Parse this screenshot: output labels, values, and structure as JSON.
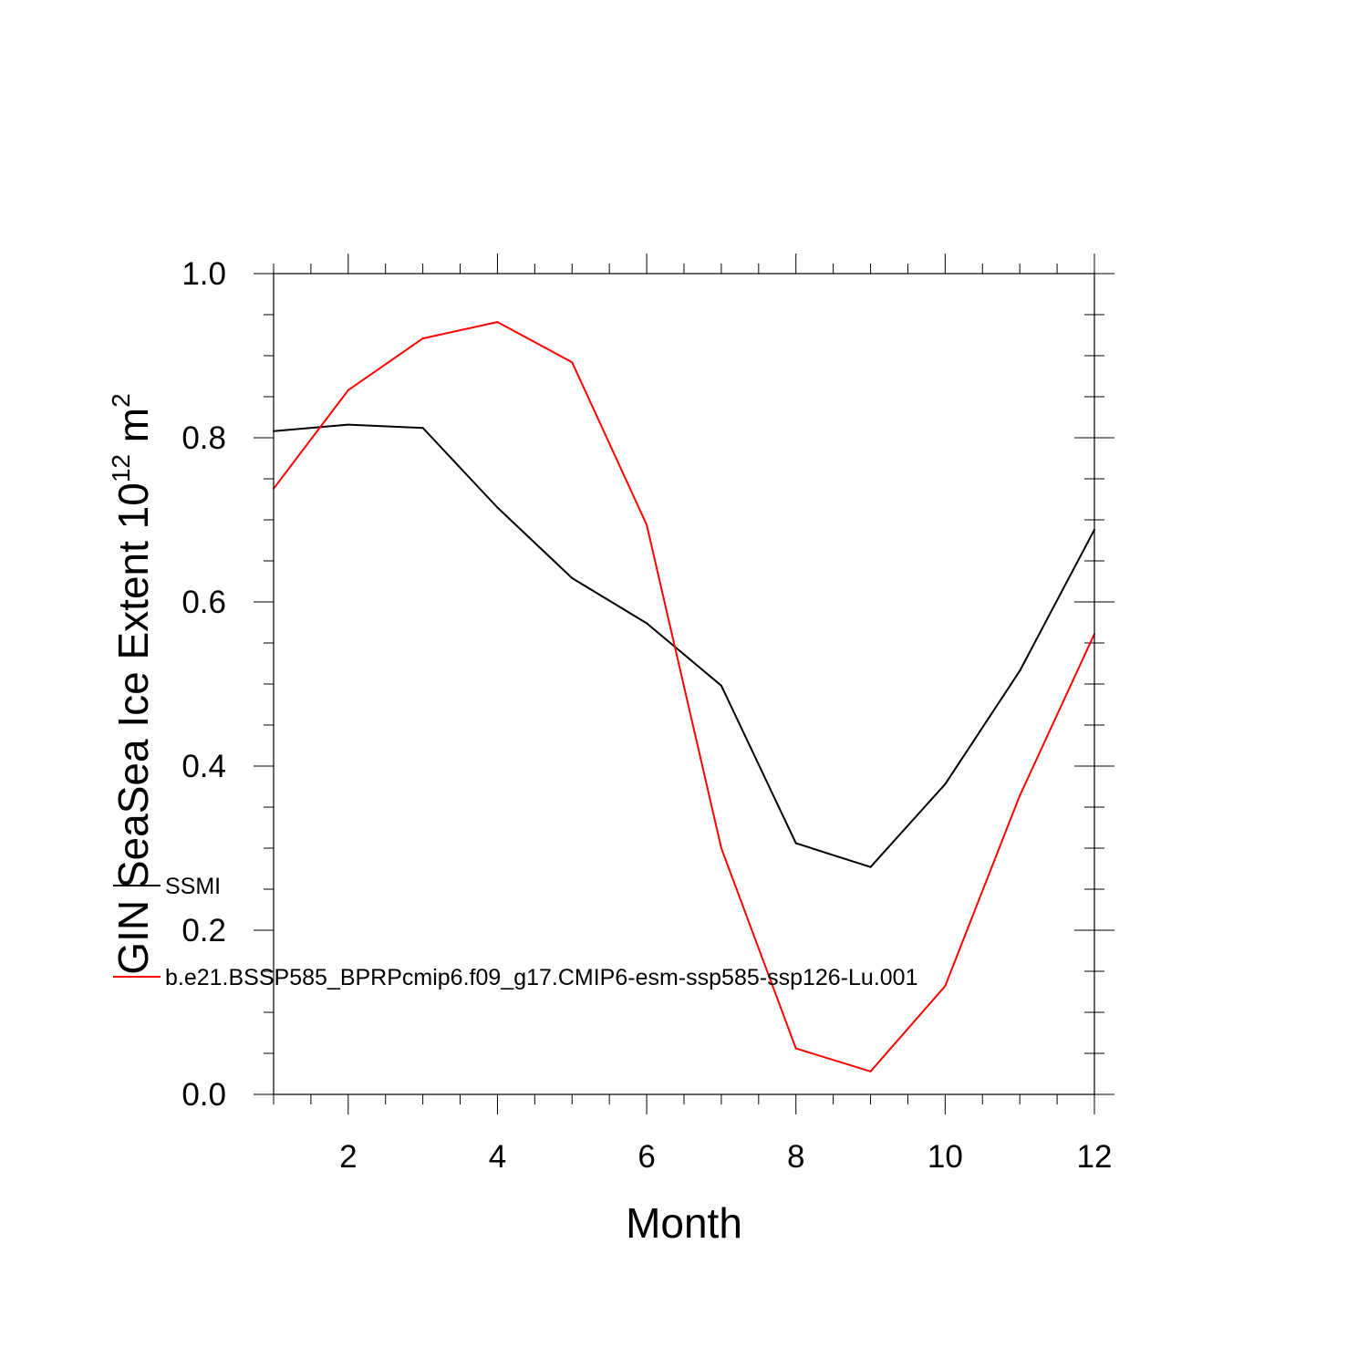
{
  "chart_data": {
    "type": "line",
    "title": "",
    "xlabel": "Month",
    "ylabel": {
      "text": "GIN SeaSea Ice Extent 10",
      "sup": "12",
      "unit": " m",
      "unit_sup": "2"
    },
    "xlim": [
      1,
      12
    ],
    "ylim": [
      0,
      1
    ],
    "x_major_ticks": [
      2,
      4,
      6,
      8,
      10,
      12
    ],
    "x_tick_labels": [
      "2",
      "4",
      "6",
      "8",
      "10",
      "12"
    ],
    "y_major_ticks": [
      0,
      0.2,
      0.4,
      0.6,
      0.8,
      1.0
    ],
    "y_tick_labels": [
      "0.0",
      "0.2",
      "0.4",
      "0.6",
      "0.8",
      "1.0"
    ],
    "grid": false,
    "legend_position": "inside-left",
    "x": [
      1,
      2,
      3,
      4,
      5,
      6,
      7,
      8,
      9,
      10,
      11,
      12
    ],
    "series": [
      {
        "name": "SSMI",
        "color": "#000000",
        "values": [
          0.808,
          0.816,
          0.812,
          0.715,
          0.629,
          0.574,
          0.498,
          0.306,
          0.277,
          0.378,
          0.516,
          0.688
        ]
      },
      {
        "name": "b.e21.BSSP585_BPRPcmip6.f09_g17.CMIP6-esm-ssp585-ssp126-Lu.001",
        "color": "#ff0000",
        "values": [
          0.738,
          0.858,
          0.921,
          0.941,
          0.892,
          0.694,
          0.3,
          0.056,
          0.028,
          0.132,
          0.364,
          0.561
        ]
      }
    ]
  }
}
